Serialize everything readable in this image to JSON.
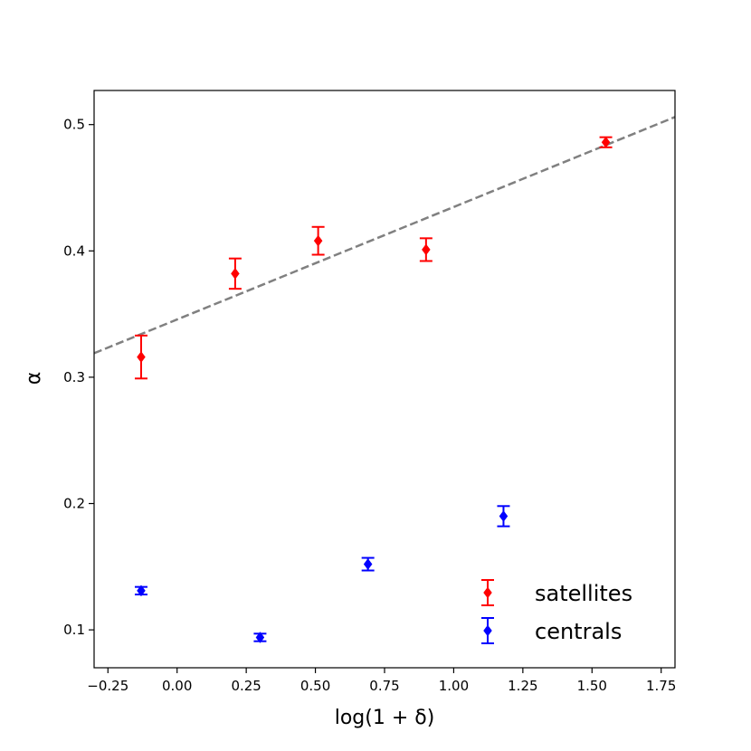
{
  "chart_data": {
    "type": "scatter",
    "title": "",
    "xlabel": "log(1 + δ)",
    "ylabel": "α",
    "xlim": [
      -0.3,
      1.8
    ],
    "ylim": [
      0.07,
      0.527
    ],
    "x_ticks": [
      -0.25,
      0.0,
      0.25,
      0.5,
      0.75,
      1.0,
      1.25,
      1.5,
      1.75
    ],
    "x_tick_labels": [
      "−0.25",
      "0.00",
      "0.25",
      "0.50",
      "0.75",
      "1.00",
      "1.25",
      "1.50",
      "1.75"
    ],
    "y_ticks": [
      0.1,
      0.2,
      0.3,
      0.4,
      0.5
    ],
    "y_tick_labels": [
      "0.1",
      "0.2",
      "0.3",
      "0.4",
      "0.5"
    ],
    "grid": false,
    "legend_position": "bottom-right",
    "series": [
      {
        "name": "satellites",
        "color": "#ff0000",
        "marker": "diamond",
        "x": [
          -0.13,
          0.21,
          0.51,
          0.9,
          1.55
        ],
        "y": [
          0.316,
          0.382,
          0.408,
          0.401,
          0.486
        ],
        "yerr": [
          0.017,
          0.012,
          0.011,
          0.009,
          0.004
        ]
      },
      {
        "name": "centrals",
        "color": "#0000ff",
        "marker": "diamond",
        "x": [
          -0.13,
          0.3,
          0.69,
          1.18
        ],
        "y": [
          0.131,
          0.094,
          0.152,
          0.19
        ],
        "yerr": [
          0.003,
          0.003,
          0.005,
          0.008
        ]
      }
    ],
    "fit_line": {
      "color": "#808080",
      "style": "dashed",
      "x": [
        -0.3,
        1.8
      ],
      "y": [
        0.319,
        0.506
      ]
    }
  }
}
